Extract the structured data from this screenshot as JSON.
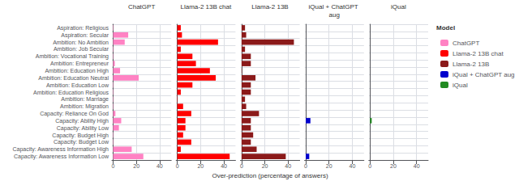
{
  "chart_data": {
    "type": "bar",
    "orientation": "horizontal",
    "categories": [
      "Aspiration: Religious",
      "Aspiration: Secular",
      "Ambition: No Ambition",
      "Ambition: Job Secular",
      "Ambition: Vocational Training",
      "Ambition: Entrepreneur",
      "Ambition: Education High",
      "Ambition: Education Neutral",
      "Ambition: Education Low",
      "Ambition: Education Religious",
      "Ambition: Marriage",
      "Ambition: Migration",
      "Capacity: Reliance On God",
      "Capacity: Ability High",
      "Capacity: Ability Low",
      "Capacity: Budget High",
      "Capacity: Budget Low",
      "Capacity: Awareness Information High",
      "Capacity: Awareness Information Low"
    ],
    "series": [
      {
        "name": "ChatGPT",
        "color": "#FF82C3",
        "values": [
          0.3,
          13,
          10,
          0.3,
          0.3,
          1.5,
          6,
          22,
          0.3,
          0.3,
          0.3,
          0.3,
          2,
          7,
          5,
          0.3,
          0.3,
          16,
          26
        ]
      },
      {
        "name": "Llama-2 13B chat",
        "color": "#FF0000",
        "values": [
          3,
          4,
          35,
          3,
          13,
          16,
          28,
          33,
          13,
          3,
          0.3,
          5,
          12,
          7,
          7,
          5,
          12,
          3,
          45
        ]
      },
      {
        "name": "Llama-2 13B",
        "color": "#8B1A1A",
        "values": [
          3,
          4,
          45,
          3,
          8,
          8,
          0.3,
          12,
          8,
          8,
          3,
          4,
          15,
          8,
          8,
          10,
          8,
          13,
          38
        ]
      },
      {
        "name": "iQual + ChatGPT aug",
        "color": "#0000CD",
        "values": [
          0,
          0,
          0,
          0,
          0,
          0,
          0,
          0,
          0,
          0,
          0,
          0,
          0,
          4,
          0,
          0,
          0,
          0,
          3
        ]
      },
      {
        "name": "iQual",
        "color": "#228B22",
        "values": [
          0,
          0,
          0,
          0,
          0,
          0,
          0,
          0,
          0,
          0,
          0,
          0,
          0,
          1.5,
          0,
          0,
          0,
          0,
          0
        ]
      }
    ],
    "xlabel": "Over-prediction (percentage of answers)",
    "xlim": [
      -1,
      50
    ],
    "xticks": [
      0,
      20,
      40
    ],
    "grid": true,
    "legend": "right",
    "legend_title": "Model"
  }
}
